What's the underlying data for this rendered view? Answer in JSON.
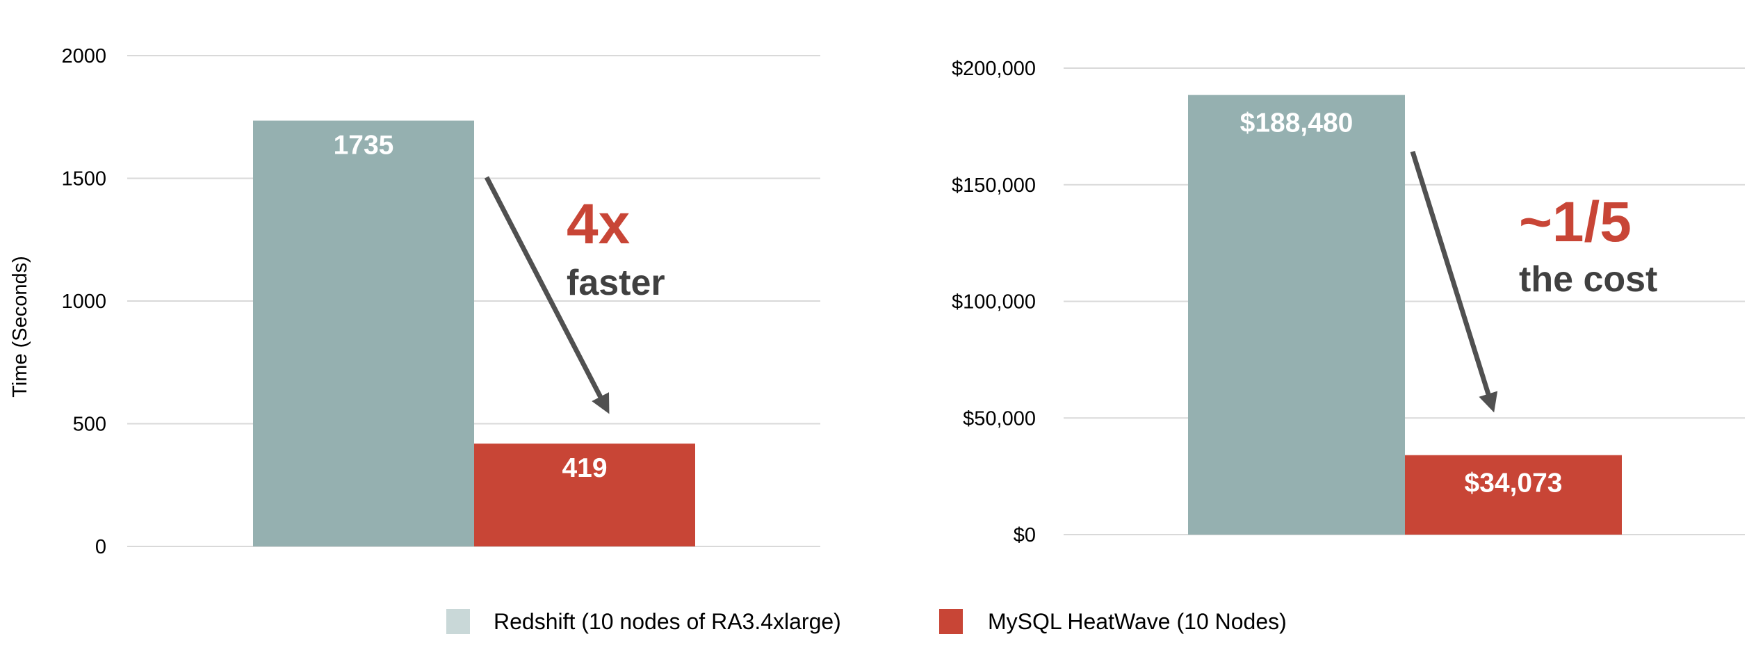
{
  "colors": {
    "redshift": "#95b0b0",
    "heatwave": "#c84536",
    "redshift_legend": "#c9d8d8",
    "grid": "#d9d9d9",
    "arrow": "#505050",
    "callout_accent": "#c84536",
    "callout_text": "#404040"
  },
  "chart_data": [
    {
      "type": "bar",
      "ylabel": "Time (Seconds)",
      "ylim": [
        0,
        2000
      ],
      "yticks": [
        "2000",
        "1500",
        "1000",
        "500",
        "0"
      ],
      "ytick_values": [
        2000,
        1500,
        1000,
        500,
        0
      ],
      "series": [
        {
          "name": "Redshift (10 nodes of RA3.4xlarge)",
          "values": [
            1735
          ],
          "label": "1735"
        },
        {
          "name": "MySQL HeatWave (10 Nodes)",
          "values": [
            419
          ],
          "label": "419"
        }
      ],
      "annotation": {
        "big": "4x",
        "small": "faster"
      },
      "grid": true
    },
    {
      "type": "bar",
      "ylabel": "",
      "ylim": [
        0,
        200000
      ],
      "yticks": [
        "$200,000",
        "$150,000",
        "$100,000",
        "$50,000",
        "$0"
      ],
      "ytick_values": [
        200000,
        150000,
        100000,
        50000,
        0
      ],
      "series": [
        {
          "name": "Redshift (10 nodes of RA3.4xlarge)",
          "values": [
            188480
          ],
          "label": "$188,480"
        },
        {
          "name": "MySQL HeatWave (10 Nodes)",
          "values": [
            34073
          ],
          "label": "$34,073"
        }
      ],
      "annotation": {
        "big": "~1/5",
        "small": "the cost"
      },
      "grid": true
    }
  ],
  "legend": {
    "placement": "bottom-center",
    "items": [
      {
        "label": "Redshift (10 nodes of RA3.4xlarge)"
      },
      {
        "label": "MySQL HeatWave (10 Nodes)"
      }
    ]
  }
}
